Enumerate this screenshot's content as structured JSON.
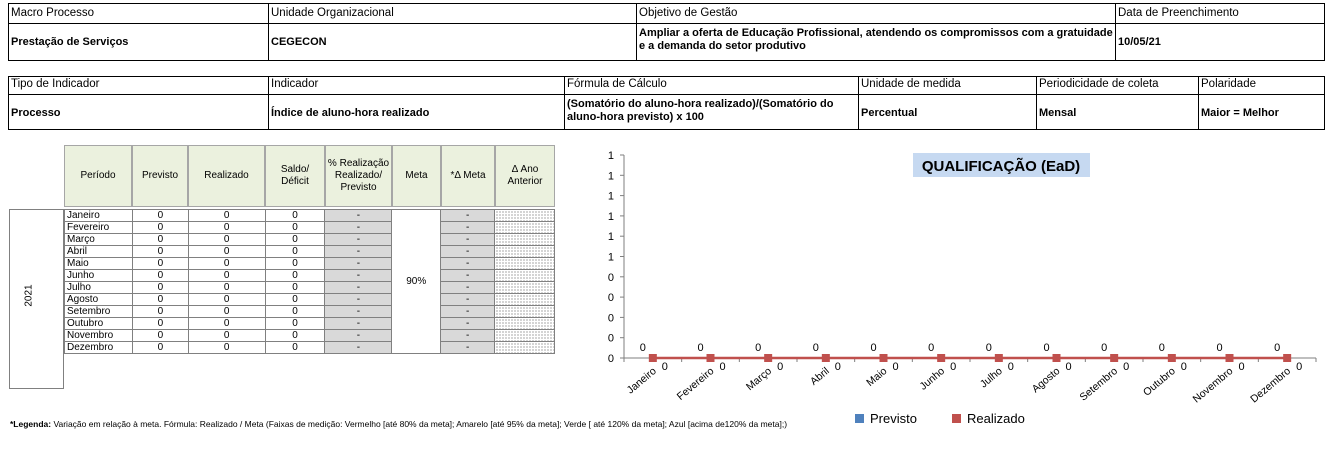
{
  "header1": {
    "macro_label": "Macro Processo",
    "macro_value": "Prestação de Serviços",
    "unidade_label": "Unidade Organizacional",
    "unidade_value": "CEGECON",
    "objetivo_label": "Objetivo de Gestão",
    "objetivo_value": "Ampliar a oferta de Educação Profissional, atendendo os compromissos com a gratuidade e a demanda do setor produtivo",
    "data_label": "Data de Preenchimento",
    "data_value": "10/05/21"
  },
  "header2": {
    "tipo_label": "Tipo de Indicador",
    "tipo_value": "Processo",
    "indicador_label": "Indicador",
    "indicador_value": "Índice de aluno-hora realizado",
    "formula_label": "Fórmula  de Cálculo",
    "formula_value": "(Somatório do aluno-hora realizado)/(Somatório do aluno-hora previsto) x 100",
    "unidade_medida_label": "Unidade de medida",
    "unidade_medida_value": "Percentual",
    "periodicidade_label": "Periodicidade de coleta",
    "periodicidade_value": "Mensal",
    "polaridade_label": "Polaridade",
    "polaridade_value": "Maior = Melhor"
  },
  "table": {
    "columns": [
      "Período",
      "Previsto",
      "Realizado",
      "Saldo/ Déficit",
      "% Realização Realizado/ Previsto",
      "Meta",
      "*Δ Meta",
      "Δ Ano Anterior"
    ],
    "year": "2021",
    "meta": "90%",
    "rows": [
      {
        "mes": "Janeiro",
        "previsto": "0",
        "realizado": "0",
        "saldo": "0",
        "realizacao": "-",
        "dmeta": "-"
      },
      {
        "mes": "Fevereiro",
        "previsto": "0",
        "realizado": "0",
        "saldo": "0",
        "realizacao": "-",
        "dmeta": "-"
      },
      {
        "mes": "Março",
        "previsto": "0",
        "realizado": "0",
        "saldo": "0",
        "realizacao": "-",
        "dmeta": "-"
      },
      {
        "mes": "Abril",
        "previsto": "0",
        "realizado": "0",
        "saldo": "0",
        "realizacao": "-",
        "dmeta": "-"
      },
      {
        "mes": "Maio",
        "previsto": "0",
        "realizado": "0",
        "saldo": "0",
        "realizacao": "-",
        "dmeta": "-"
      },
      {
        "mes": "Junho",
        "previsto": "0",
        "realizado": "0",
        "saldo": "0",
        "realizacao": "-",
        "dmeta": "-"
      },
      {
        "mes": "Julho",
        "previsto": "0",
        "realizado": "0",
        "saldo": "0",
        "realizacao": "-",
        "dmeta": "-"
      },
      {
        "mes": "Agosto",
        "previsto": "0",
        "realizado": "0",
        "saldo": "0",
        "realizacao": "-",
        "dmeta": "-"
      },
      {
        "mes": "Setembro",
        "previsto": "0",
        "realizado": "0",
        "saldo": "0",
        "realizacao": "-",
        "dmeta": "-"
      },
      {
        "mes": "Outubro",
        "previsto": "0",
        "realizado": "0",
        "saldo": "0",
        "realizacao": "-",
        "dmeta": "-"
      },
      {
        "mes": "Novembro",
        "previsto": "0",
        "realizado": "0",
        "saldo": "0",
        "realizacao": "-",
        "dmeta": "-"
      },
      {
        "mes": "Dezembro",
        "previsto": "0",
        "realizado": "0",
        "saldo": "0",
        "realizacao": "-",
        "dmeta": "-"
      }
    ]
  },
  "chart_data": {
    "type": "line",
    "title": "QUALIFICAÇÃO (EaD)",
    "categories": [
      "Janeiro",
      "Fevereiro",
      "Março",
      "Abril",
      "Maio",
      "Junho",
      "Julho",
      "Agosto",
      "Setembro",
      "Outubro",
      "Novembro",
      "Dezembro"
    ],
    "y_tick_labels": [
      "0",
      "0",
      "0",
      "0",
      "0",
      "1",
      "1",
      "1",
      "1",
      "1",
      "1"
    ],
    "series": [
      {
        "name": "Previsto",
        "values": [
          0,
          0,
          0,
          0,
          0,
          0,
          0,
          0,
          0,
          0,
          0,
          0
        ],
        "color": "#4f81bd"
      },
      {
        "name": "Realizado",
        "values": [
          0,
          0,
          0,
          0,
          0,
          0,
          0,
          0,
          0,
          0,
          0,
          0
        ],
        "color": "#c0504d"
      }
    ],
    "legend_position": "bottom",
    "title_bg": "#c6d9f1"
  },
  "legend_note": {
    "prefix": "*Legenda:",
    "text": " Variação em relação à meta. Fórmula: Realizado / Meta (Faixas de medição: Vermelho [até 80% da meta]; Amarelo [até 95% da meta]; Verde [ até 120% da meta]; Azul [acima de120% da meta];)"
  }
}
